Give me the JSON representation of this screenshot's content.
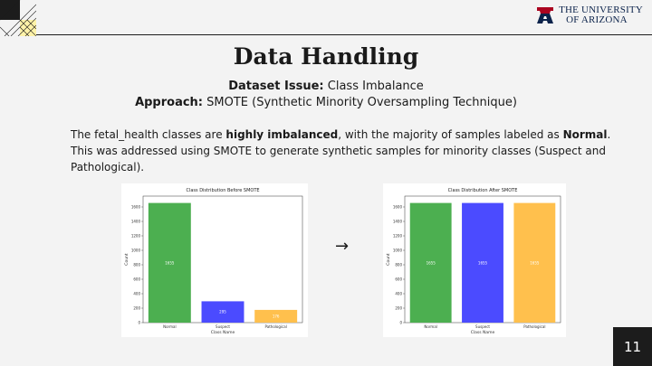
{
  "logo": {
    "line1": "THE UNIVERSITY",
    "line2": "OF ARIZONA",
    "mark": "A"
  },
  "title": "Data Handling",
  "issue": {
    "label": "Dataset Issue:",
    "value": "Class Imbalance"
  },
  "approach": {
    "label": "Approach:",
    "value": "SMOTE (Synthetic Minority Oversampling Technique)"
  },
  "paragraph": {
    "p1": "The fetal_health classes are ",
    "b1": "highly imbalanced",
    "p2": ", with the majority of samples labeled as ",
    "b2": "Normal",
    "p3": ". This was addressed using SMOTE  to generate synthetic samples for minority classes (Suspect and Pathological)."
  },
  "arrow": "→",
  "page_number": "11",
  "colors": {
    "normal": "#4caf50",
    "suspect": "#4b4bff",
    "pathological": "#ffc04d"
  },
  "chart_data": [
    {
      "type": "bar",
      "title": "Class Distribution Before SMOTE",
      "xlabel": "Class Name",
      "ylabel": "Count",
      "categories": [
        "Normal",
        "Suspect",
        "Pathological"
      ],
      "values": [
        1655,
        295,
        176
      ],
      "value_labels": [
        "1655",
        "295",
        "176"
      ],
      "ylim": [
        0,
        1750
      ],
      "yticks": [
        0,
        200,
        400,
        600,
        800,
        1000,
        1200,
        1400,
        1600
      ],
      "grid": false
    },
    {
      "type": "bar",
      "title": "Class Distribution After SMOTE",
      "xlabel": "Class Name",
      "ylabel": "Count",
      "categories": [
        "Normal",
        "Suspect",
        "Pathological"
      ],
      "values": [
        1655,
        1655,
        1655
      ],
      "value_labels": [
        "1655",
        "1655",
        "1655"
      ],
      "ylim": [
        0,
        1750
      ],
      "yticks": [
        0,
        200,
        400,
        600,
        800,
        1000,
        1200,
        1400,
        1600
      ],
      "grid": false
    }
  ]
}
